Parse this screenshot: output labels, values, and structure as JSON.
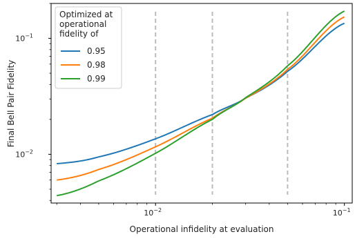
{
  "chart_data": {
    "type": "line",
    "xscale": "log",
    "yscale": "log",
    "xlim": [
      0.0028,
      0.11
    ],
    "ylim": [
      0.0038,
      0.2
    ],
    "xlabel": "Operational infidelity at evaluation",
    "ylabel": "Final Bell Pair Fidelity",
    "xticks": [
      {
        "value": 0.01,
        "base": "10",
        "exp": "−2"
      },
      {
        "value": 0.1,
        "base": "10",
        "exp": "−1"
      }
    ],
    "yticks": [
      {
        "value": 0.01,
        "base": "10",
        "exp": "−2"
      },
      {
        "value": 0.1,
        "base": "10",
        "exp": "−1"
      }
    ],
    "vlines": [
      0.01,
      0.02,
      0.05
    ],
    "vline_color": "#bbbbbb",
    "grid": false,
    "legend": {
      "title_lines": [
        "Optimized at",
        "operational",
        "fidelity of"
      ],
      "placement": "top-left"
    },
    "x": [
      0.003,
      0.005,
      0.01,
      0.02,
      0.03,
      0.05,
      0.1
    ],
    "series": [
      {
        "name": "0.95",
        "color": "#1f77b4",
        "values": [
          0.0083,
          0.0095,
          0.0136,
          0.022,
          0.0305,
          0.052,
          0.135
        ]
      },
      {
        "name": "0.98",
        "color": "#ff7f0e",
        "values": [
          0.006,
          0.0074,
          0.0116,
          0.0205,
          0.0305,
          0.054,
          0.153
        ]
      },
      {
        "name": "0.99",
        "color": "#2ca02c",
        "values": [
          0.0044,
          0.0059,
          0.0102,
          0.02,
          0.0308,
          0.058,
          0.172
        ]
      }
    ]
  }
}
